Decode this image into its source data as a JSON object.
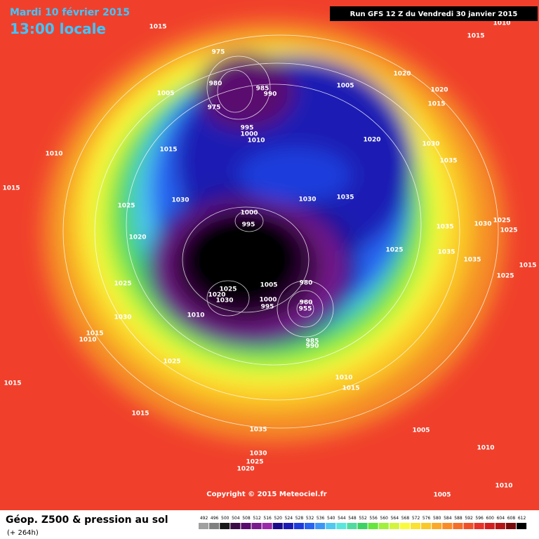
{
  "header": {
    "date": "Mardi 10 février 2015",
    "time": "13:00 locale",
    "run": "Run GFS 12 Z du Vendredi 30 janvier 2015"
  },
  "map": {
    "pressure_labels": [
      1015,
      1010,
      1015,
      975,
      980,
      985,
      990,
      1005,
      1020,
      1020,
      1015,
      1005,
      975,
      995,
      1000,
      1010,
      1020,
      1030,
      1015,
      1010,
      1035,
      1015,
      1025,
      1030,
      1030,
      1035,
      1000,
      995,
      1035,
      1030,
      1025,
      1025,
      1020,
      1035,
      1025,
      1035,
      1015,
      1025,
      1025,
      1005,
      980,
      1025,
      1020,
      1030,
      1000,
      995,
      960,
      955,
      1030,
      1010,
      1015,
      1010,
      985,
      990,
      1025,
      1010,
      1015,
      1015,
      1015,
      1035,
      1005,
      1030,
      1025,
      1020,
      1010,
      1010,
      1005
    ],
    "copyright": "Copyright © 2015 Meteociel.fr"
  },
  "footer": {
    "title": "Géop. Z500 & pression au sol",
    "lead": "(+ 264h)"
  },
  "scale": {
    "levels": [
      492,
      496,
      500,
      504,
      508,
      512,
      516,
      520,
      524,
      528,
      532,
      536,
      540,
      544,
      548,
      552,
      556,
      560,
      564,
      568,
      572,
      576,
      580,
      584,
      588,
      592,
      596,
      600,
      604,
      608,
      612
    ],
    "colors": [
      "#a0a0a0",
      "#808080",
      "#1a1a1a",
      "#3c0a46",
      "#5a0a6e",
      "#7a1a8e",
      "#9a2aaa",
      "#1a0a8c",
      "#1a1ab4",
      "#1e3cdc",
      "#2864f0",
      "#3c96f5",
      "#50c8f0",
      "#5ae6dc",
      "#50dca0",
      "#3cd264",
      "#64e63c",
      "#a0f03c",
      "#d2f53c",
      "#fafa3c",
      "#fae132",
      "#fac828",
      "#faaa28",
      "#fa8c28",
      "#f56e28",
      "#f05028",
      "#e63228",
      "#d21e1e",
      "#b41414",
      "#780a0a",
      "#000000"
    ]
  }
}
